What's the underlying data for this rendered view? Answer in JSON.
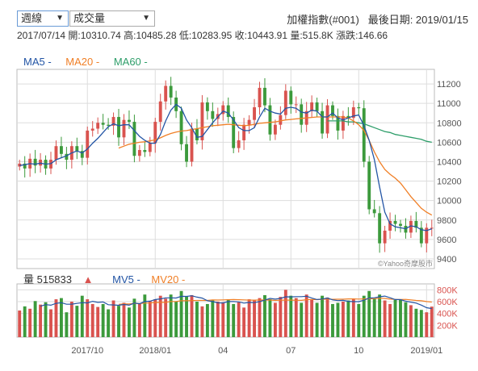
{
  "controls": {
    "period": "週線",
    "indicator": "成交量"
  },
  "header": {
    "index_name": "加權指數(#001)",
    "last_date_label": "最後日期: 2019/01/15"
  },
  "info": {
    "date": "2017/07/14",
    "open": "開:10310.74",
    "high": "高:10485.28",
    "low": "低:10283.95",
    "close": "收:10443.91",
    "volume": "量:515.8K",
    "change": "漲跌:146.66"
  },
  "legend": {
    "ma5": "MA5 -",
    "ma20": "MA20 -",
    "ma60": "MA60 -"
  },
  "vol_legend": {
    "vol": "量 515833",
    "arrow": "▲",
    "mv5": "MV5 -",
    "mv20": "MV20 -"
  },
  "copyright": "©Yahoo奇摩股市",
  "colors": {
    "up": "#d9534f",
    "down": "#3c9a3c",
    "ma5": "#2355a5",
    "ma20": "#f07f26",
    "ma60": "#2e9e6a",
    "grid": "#ddd"
  },
  "chart_data": {
    "type": "candlestick",
    "price_axis": {
      "ticks": [
        9400,
        9600,
        9800,
        10000,
        10200,
        10400,
        10600,
        10800,
        11000,
        11200
      ],
      "ylim": [
        9300,
        11350
      ]
    },
    "volume_axis": {
      "ticks": [
        "200K",
        "400K",
        "600K",
        "800K"
      ],
      "tick_values": [
        200000,
        400000,
        600000,
        800000
      ],
      "ylim": [
        0,
        900000
      ]
    },
    "x_ticks": [
      {
        "label": "2017/10",
        "index": 13
      },
      {
        "label": "2018/01",
        "index": 26
      },
      {
        "label": "04",
        "index": 39
      },
      {
        "label": "07",
        "index": 52
      },
      {
        "label": "10",
        "index": 65
      },
      {
        "label": "2019/01",
        "index": 78
      }
    ],
    "close": [
      10380,
      10330,
      10430,
      10360,
      10420,
      10330,
      10420,
      10560,
      10480,
      10420,
      10560,
      10510,
      10440,
      10720,
      10740,
      10800,
      10780,
      10770,
      10860,
      10650,
      10830,
      10810,
      10460,
      10520,
      10500,
      10590,
      10810,
      11020,
      11180,
      11060,
      10920,
      10580,
      10400,
      10740,
      10620,
      11010,
      10920,
      10840,
      10890,
      10980,
      10860,
      10540,
      10620,
      10780,
      10830,
      10960,
      11160,
      10980,
      10680,
      10780,
      10880,
      11130,
      10990,
      10990,
      10780,
      10920,
      11010,
      10920,
      10690,
      10980,
      10870,
      10720,
      10870,
      10850,
      10960,
      10950,
      10400,
      9910,
      9870,
      9560,
      9690,
      9790,
      9760,
      9740,
      9670,
      9790,
      9720,
      9560,
      9720,
      9720
    ],
    "ma5": [
      10360,
      10370,
      10380,
      10375,
      10385,
      10375,
      10380,
      10420,
      10440,
      10460,
      10490,
      10510,
      10490,
      10530,
      10590,
      10640,
      10700,
      10760,
      10790,
      10770,
      10780,
      10780,
      10720,
      10660,
      10620,
      10590,
      10590,
      10680,
      10820,
      10930,
      10990,
      10950,
      10830,
      10750,
      10650,
      10660,
      10730,
      10800,
      10860,
      10920,
      10900,
      10830,
      10750,
      10720,
      10720,
      10750,
      10860,
      10950,
      10920,
      10900,
      10890,
      10950,
      10960,
      10950,
      10910,
      10900,
      10930,
      10920,
      10860,
      10860,
      10900,
      10850,
      10830,
      10850,
      10870,
      10880,
      10770,
      10620,
      10420,
      10140,
      9880,
      9760,
      9730,
      9720,
      9710,
      9740,
      9730,
      9700,
      9690,
      9710
    ],
    "ma20": [
      null,
      null,
      null,
      null,
      null,
      null,
      null,
      null,
      null,
      null,
      null,
      null,
      null,
      null,
      null,
      null,
      null,
      null,
      null,
      10540,
      10560,
      10580,
      10590,
      10600,
      10605,
      10615,
      10625,
      10645,
      10670,
      10690,
      10705,
      10715,
      10720,
      10730,
      10740,
      10750,
      10760,
      10770,
      10775,
      10780,
      10785,
      10780,
      10775,
      10770,
      10775,
      10785,
      10795,
      10800,
      10805,
      10810,
      10820,
      10830,
      10835,
      10840,
      10845,
      10850,
      10855,
      10860,
      10860,
      10860,
      10860,
      10860,
      10860,
      10850,
      10820,
      10780,
      10720,
      10620,
      10500,
      10400,
      10320,
      10270,
      10230,
      10180,
      10110,
      10040,
      9980,
      9920,
      9880,
      9850
    ],
    "ma60": [
      null,
      null,
      null,
      null,
      null,
      null,
      null,
      null,
      null,
      null,
      null,
      null,
      null,
      null,
      null,
      null,
      null,
      null,
      null,
      null,
      null,
      null,
      null,
      null,
      null,
      null,
      null,
      null,
      null,
      null,
      null,
      null,
      null,
      null,
      null,
      null,
      null,
      null,
      null,
      null,
      null,
      null,
      null,
      null,
      null,
      null,
      null,
      null,
      null,
      null,
      null,
      null,
      null,
      null,
      null,
      null,
      null,
      null,
      null,
      10820,
      10820,
      10820,
      10820,
      10810,
      10810,
      10800,
      10790,
      10770,
      10750,
      10730,
      10710,
      10700,
      10680,
      10670,
      10660,
      10650,
      10640,
      10630,
      10610,
      10600
    ],
    "volume": [
      450000,
      520000,
      480000,
      610000,
      550000,
      590000,
      470000,
      640000,
      660000,
      420000,
      600000,
      530000,
      700000,
      640000,
      560000,
      510000,
      560000,
      470000,
      620000,
      530000,
      580000,
      500000,
      650000,
      560000,
      720000,
      610000,
      640000,
      700000,
      650000,
      720000,
      600000,
      780000,
      690000,
      710000,
      600000,
      520000,
      560000,
      620000,
      600000,
      590000,
      640000,
      560000,
      590000,
      500000,
      640000,
      620000,
      660000,
      710000,
      640000,
      580000,
      680000,
      800000,
      700000,
      660000,
      580000,
      720000,
      640000,
      580000,
      700000,
      670000,
      560000,
      580000,
      600000,
      620000,
      640000,
      560000,
      700000,
      780000,
      650000,
      720000,
      620000,
      560000,
      630000,
      640000,
      590000,
      540000,
      480000,
      460000,
      420000,
      515833
    ]
  }
}
